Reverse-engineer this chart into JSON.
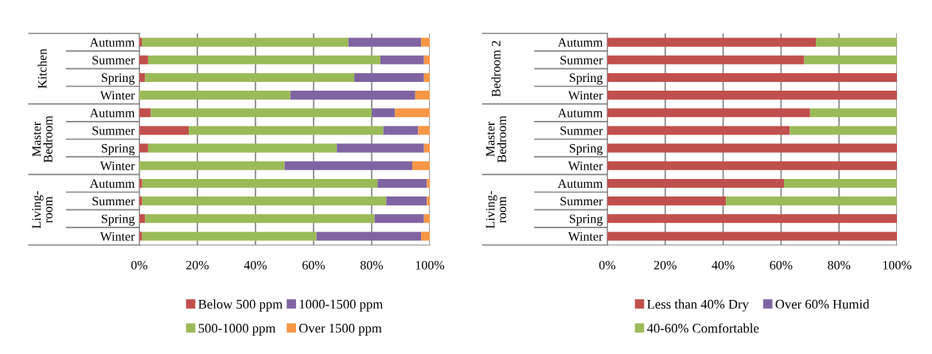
{
  "chart_data": [
    {
      "type": "bar",
      "orientation": "horizontal",
      "stacked": true,
      "categories": [
        "Autumm",
        "Summer",
        "Spring",
        "Winter",
        "Autumm",
        "Summer",
        "Spring",
        "Winter",
        "Autumm",
        "Summer",
        "Spring",
        "Winter"
      ],
      "annotations": [
        "Kitchen",
        "Master\nBedroom",
        "Living-\nroom"
      ],
      "series": [
        {
          "name": "Below 500 ppm",
          "color": "#c0504d",
          "values": [
            1,
            3,
            2,
            0,
            4,
            17,
            3,
            0,
            1,
            1,
            2,
            1
          ]
        },
        {
          "name": "500-1000 ppm",
          "color": "#9bbb59",
          "values": [
            71,
            80,
            72,
            52,
            76,
            67,
            65,
            50,
            81,
            84,
            79,
            60
          ]
        },
        {
          "name": "1000-1500 ppm",
          "color": "#8064a2",
          "values": [
            25,
            15,
            24,
            43,
            8,
            12,
            30,
            44,
            17,
            14,
            17,
            36
          ]
        },
        {
          "name": "Over 1500 ppm",
          "color": "#f79646",
          "values": [
            3,
            2,
            2,
            5,
            12,
            4,
            2,
            6,
            1,
            1,
            2,
            3
          ]
        }
      ],
      "xlim": [
        0,
        100
      ],
      "xticks": [
        {
          "value": 0,
          "label": "0%"
        },
        {
          "value": 20,
          "label": "20%"
        },
        {
          "value": 40,
          "label": "40%"
        },
        {
          "value": 60,
          "label": "60%"
        },
        {
          "value": 80,
          "label": "80%"
        },
        {
          "value": 100,
          "label": "100%"
        }
      ],
      "grid": "x",
      "legend": "bottom"
    },
    {
      "type": "bar",
      "orientation": "horizontal",
      "stacked": true,
      "categories": [
        "Autumm",
        "Summer",
        "Spring",
        "Winter",
        "Autumm",
        "Summer",
        "Spring",
        "Winter",
        "Autumm",
        "Summer",
        "Spring",
        "Winter"
      ],
      "annotations": [
        "Bedroom 2",
        "Master\nBedroom",
        "Living-\nroom"
      ],
      "series": [
        {
          "name": "Less than 40% Dry",
          "color": "#c0504d",
          "values": [
            72,
            68,
            100,
            100,
            70,
            63,
            100,
            100,
            61,
            41,
            100,
            100
          ]
        },
        {
          "name": "40-60% Comfortable",
          "color": "#9bbb59",
          "values": [
            28,
            32,
            0,
            0,
            30,
            37,
            0,
            0,
            39,
            59,
            0,
            0
          ]
        },
        {
          "name": "Over 60% Humid",
          "color": "#8064a2",
          "values": [
            0,
            0,
            0,
            0,
            0,
            0,
            0,
            0,
            0,
            0,
            0,
            0
          ]
        }
      ],
      "xlim": [
        0,
        100
      ],
      "xticks": [
        {
          "value": 0,
          "label": "0%"
        },
        {
          "value": 20,
          "label": "20%"
        },
        {
          "value": 40,
          "label": "40%"
        },
        {
          "value": 60,
          "label": "60%"
        },
        {
          "value": 80,
          "label": "80%"
        },
        {
          "value": 100,
          "label": "100%"
        }
      ],
      "grid": "x",
      "legend": "bottom"
    }
  ]
}
